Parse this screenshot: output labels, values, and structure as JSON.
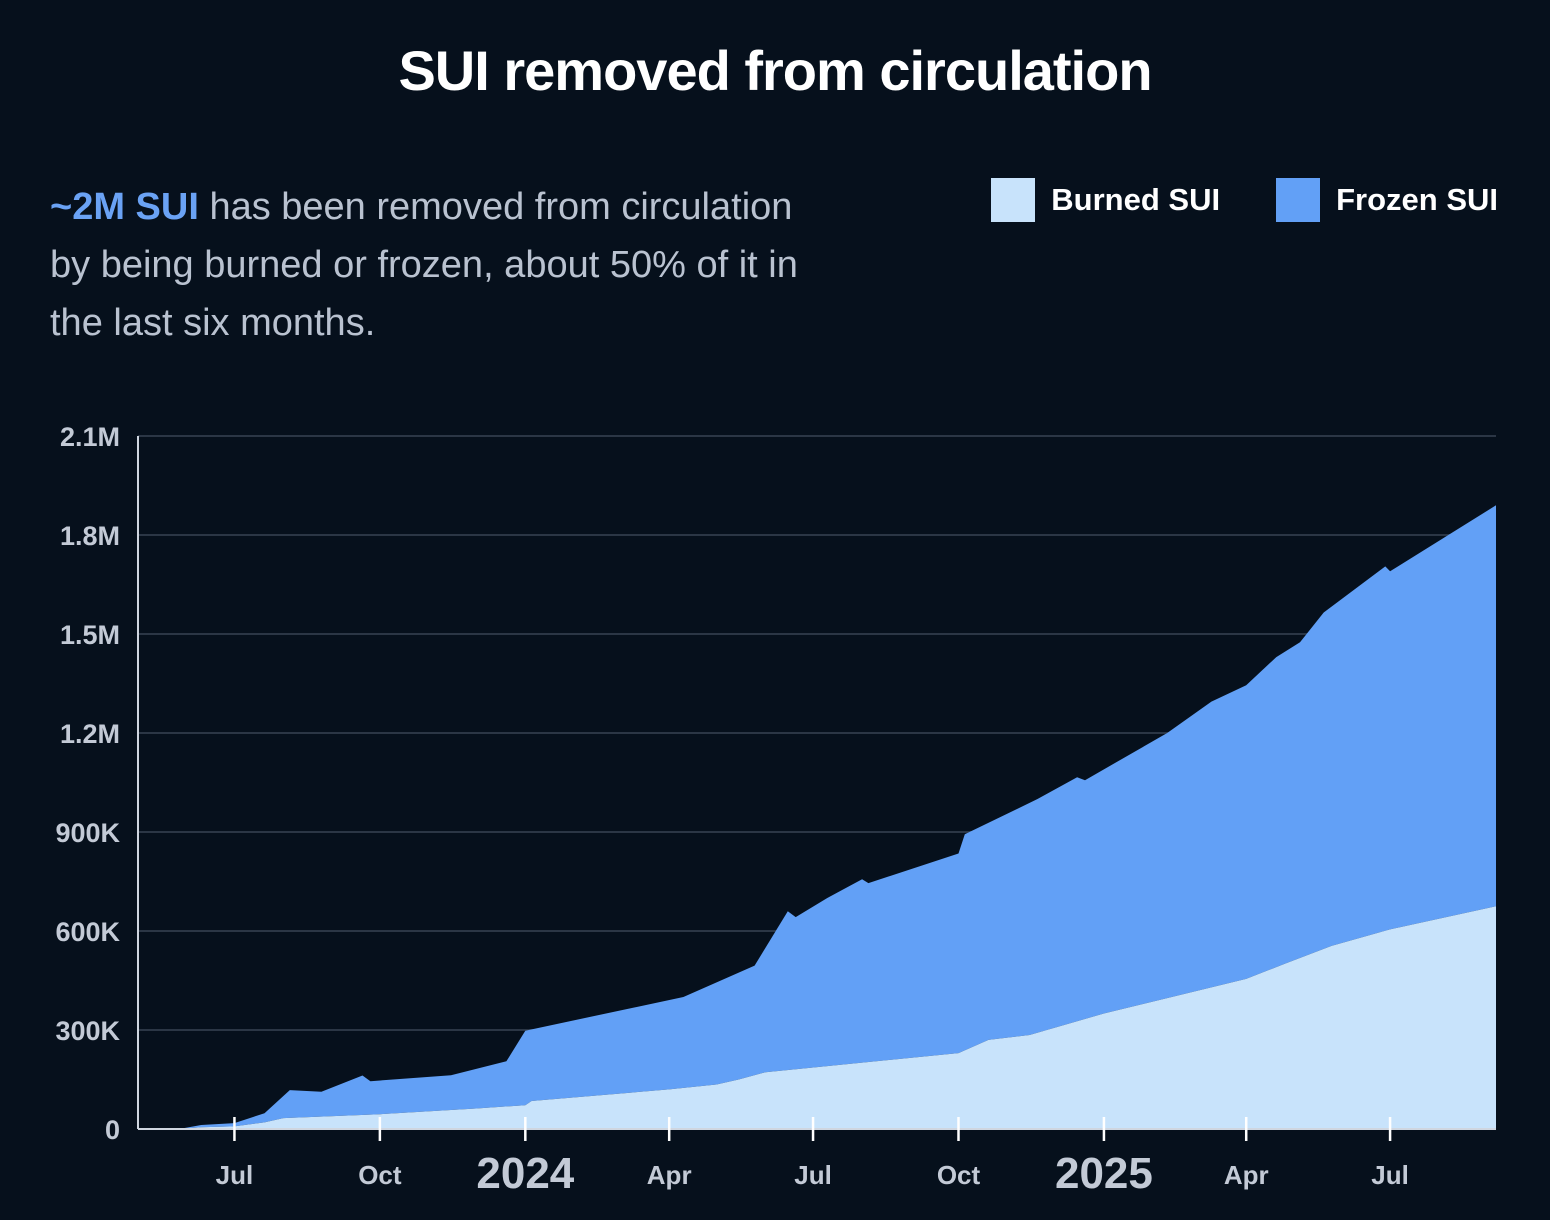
{
  "title": "SUI removed from circulation",
  "description": {
    "highlight": "~2M SUI",
    "text": " has been removed from circulation by being burned or frozen, about 50% of it in the last six months."
  },
  "colors": {
    "background": "#06101c",
    "burned": "#c8e3fb",
    "frozen": "#62a0f6",
    "highlight": "#6aa2f4",
    "grid": "#2b3645"
  },
  "chart_data": {
    "type": "area",
    "stacked": true,
    "x_unit": "months since 2023-05-01",
    "ylim": [
      0,
      2100000
    ],
    "y_ticks": [
      {
        "value": 0,
        "label": "0"
      },
      {
        "value": 300000,
        "label": "300K"
      },
      {
        "value": 600000,
        "label": "600K"
      },
      {
        "value": 900000,
        "label": "900K"
      },
      {
        "value": 1200000,
        "label": "1.2M"
      },
      {
        "value": 1500000,
        "label": "1.5M"
      },
      {
        "value": 1800000,
        "label": "1.8M"
      },
      {
        "value": 2100000,
        "label": "2.1M"
      }
    ],
    "x_ticks": [
      {
        "date": "2023-07-01",
        "label": "Jul",
        "major": false
      },
      {
        "date": "2023-10-01",
        "label": "Oct",
        "major": false
      },
      {
        "date": "2024-01-01",
        "label": "2024",
        "major": true
      },
      {
        "date": "2024-04-01",
        "label": "Apr",
        "major": false
      },
      {
        "date": "2024-07-01",
        "label": "Jul",
        "major": false
      },
      {
        "date": "2024-10-01",
        "label": "Oct",
        "major": false
      },
      {
        "date": "2025-01-01",
        "label": "2025",
        "major": true
      },
      {
        "date": "2025-04-01",
        "label": "Apr",
        "major": false
      },
      {
        "date": "2025-07-01",
        "label": "Jul",
        "major": false
      }
    ],
    "x_range": [
      "2023-05-01",
      "2025-09-06"
    ],
    "series": [
      {
        "name": "Burned SUI",
        "color": "#c8e3fb",
        "points": [
          [
            "2023-05-01",
            0
          ],
          [
            "2023-05-27",
            0
          ],
          [
            "2023-06-10",
            5000
          ],
          [
            "2023-07-01",
            8000
          ],
          [
            "2023-07-20",
            20000
          ],
          [
            "2023-08-01",
            33000
          ],
          [
            "2023-10-01",
            45000
          ],
          [
            "2023-12-01",
            62000
          ],
          [
            "2024-01-01",
            72000
          ],
          [
            "2024-01-05",
            85000
          ],
          [
            "2024-04-01",
            120000
          ],
          [
            "2024-05-01",
            135000
          ],
          [
            "2024-05-15",
            150000
          ],
          [
            "2024-06-01",
            172000
          ],
          [
            "2024-10-01",
            230000
          ],
          [
            "2024-10-20",
            270000
          ],
          [
            "2024-11-15",
            285000
          ],
          [
            "2025-01-01",
            350000
          ],
          [
            "2025-04-01",
            455000
          ],
          [
            "2025-04-25",
            500000
          ],
          [
            "2025-05-25",
            555000
          ],
          [
            "2025-07-01",
            605000
          ],
          [
            "2025-09-06",
            675000
          ]
        ]
      },
      {
        "name": "Frozen SUI",
        "color": "#62a0f6",
        "total_points": [
          [
            "2023-05-01",
            0
          ],
          [
            "2023-05-27",
            0
          ],
          [
            "2023-06-10",
            12000
          ],
          [
            "2023-07-01",
            18000
          ],
          [
            "2023-07-20",
            48000
          ],
          [
            "2023-08-05",
            118000
          ],
          [
            "2023-08-25",
            113000
          ],
          [
            "2023-09-20",
            162000
          ],
          [
            "2023-09-25",
            145000
          ],
          [
            "2023-11-15",
            163000
          ],
          [
            "2023-12-20",
            205000
          ],
          [
            "2024-01-01",
            298000
          ],
          [
            "2024-04-10",
            400000
          ],
          [
            "2024-05-25",
            495000
          ],
          [
            "2024-06-15",
            660000
          ],
          [
            "2024-06-20",
            642000
          ],
          [
            "2024-07-10",
            700000
          ],
          [
            "2024-08-01",
            757000
          ],
          [
            "2024-08-05",
            745000
          ],
          [
            "2024-10-01",
            835000
          ],
          [
            "2024-10-05",
            893000
          ],
          [
            "2024-11-20",
            1000000
          ],
          [
            "2024-12-15",
            1066000
          ],
          [
            "2024-12-20",
            1057000
          ],
          [
            "2025-02-10",
            1200000
          ],
          [
            "2025-03-10",
            1295000
          ],
          [
            "2025-04-01",
            1345000
          ],
          [
            "2025-04-20",
            1430000
          ],
          [
            "2025-05-05",
            1475000
          ],
          [
            "2025-05-20",
            1565000
          ],
          [
            "2025-06-28",
            1705000
          ],
          [
            "2025-07-01",
            1690000
          ],
          [
            "2025-09-06",
            1890000
          ]
        ]
      }
    ]
  }
}
